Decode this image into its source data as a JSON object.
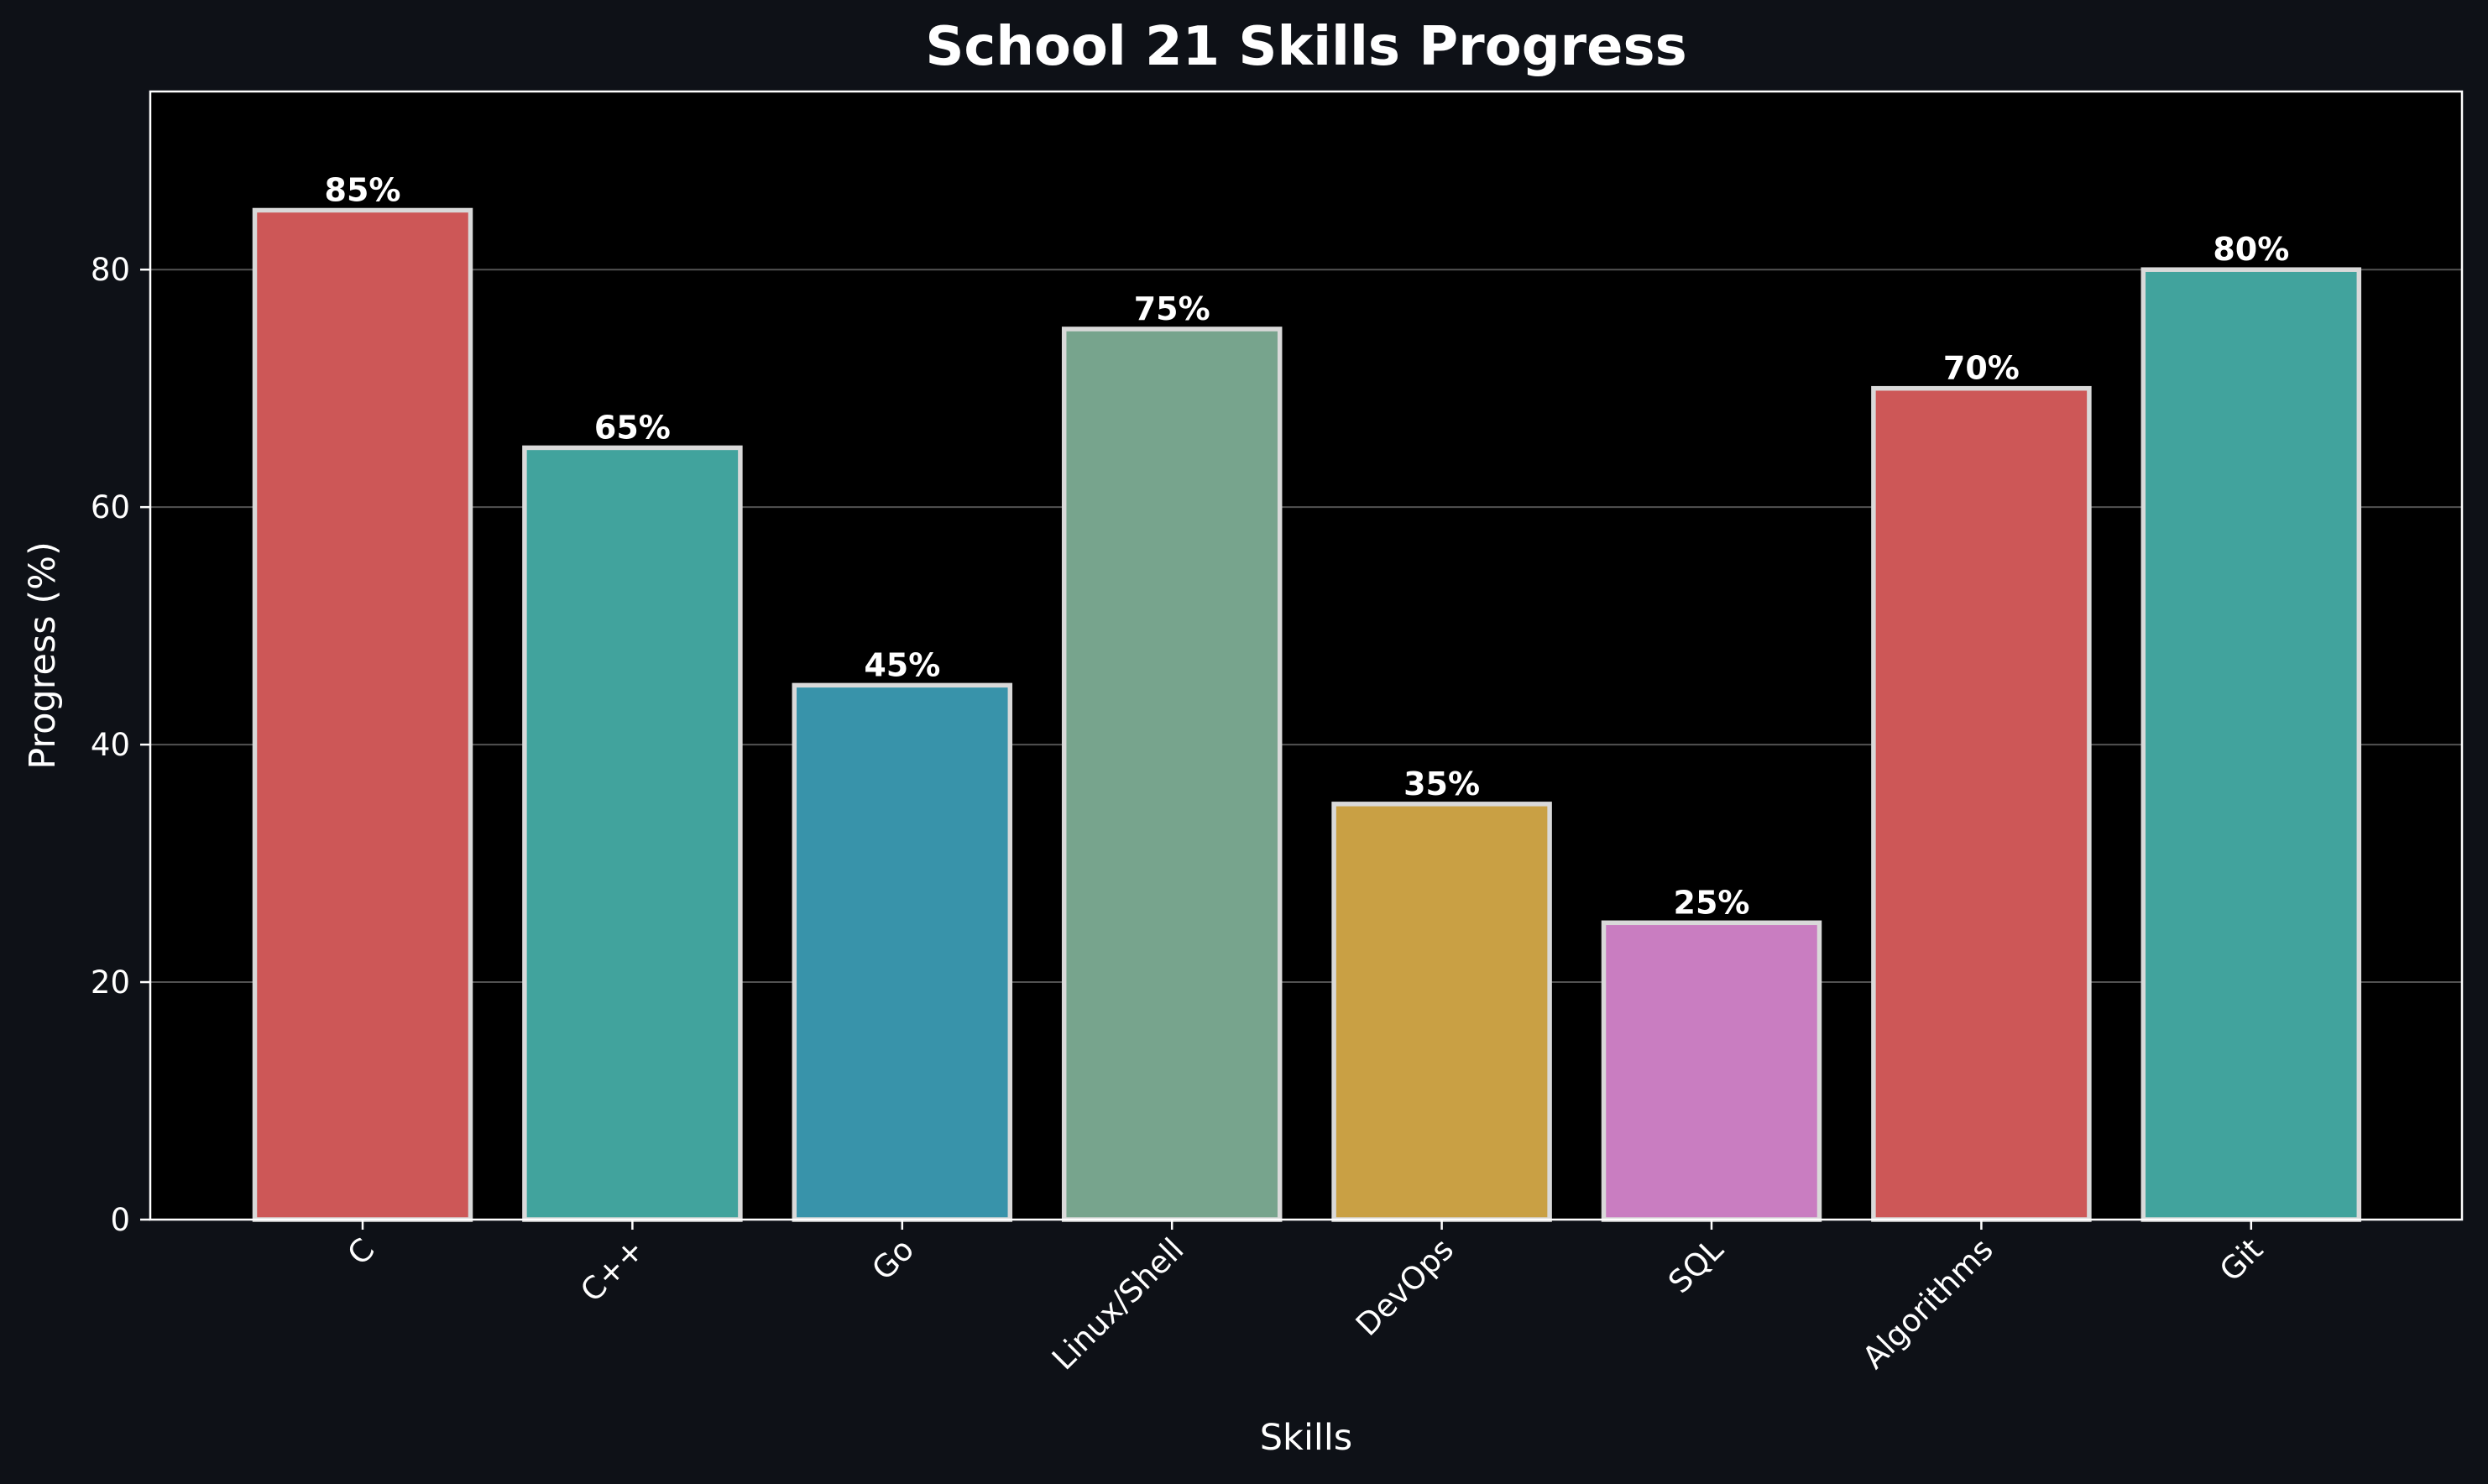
{
  "chart_data": {
    "type": "bar",
    "title": "School 21 Skills Progress",
    "xlabel": "Skills",
    "ylabel": "Progress (%)",
    "categories": [
      "C",
      "C++",
      "Go",
      "Linux/Shell",
      "DevOps",
      "SQL",
      "Algorithms",
      "Git"
    ],
    "values": [
      85,
      65,
      45,
      75,
      35,
      25,
      70,
      80
    ],
    "value_labels": [
      "85%",
      "65%",
      "45%",
      "75%",
      "35%",
      "25%",
      "70%",
      "80%"
    ],
    "colors": [
      "#cd5757",
      "#41a39d",
      "#3893aa",
      "#77a48d",
      "#c9a044",
      "#c97dc1",
      "#cd5757",
      "#41a39d"
    ],
    "ylim": [
      0,
      95
    ],
    "yticks": [
      0,
      20,
      40,
      60,
      80
    ],
    "grid": "y",
    "legend": "none",
    "background": "#0e1117",
    "plot_background": "#000000",
    "bar_edge_color": "#d9d9d9",
    "gridline_color": "#666666",
    "axis_color": "#ffffff"
  }
}
